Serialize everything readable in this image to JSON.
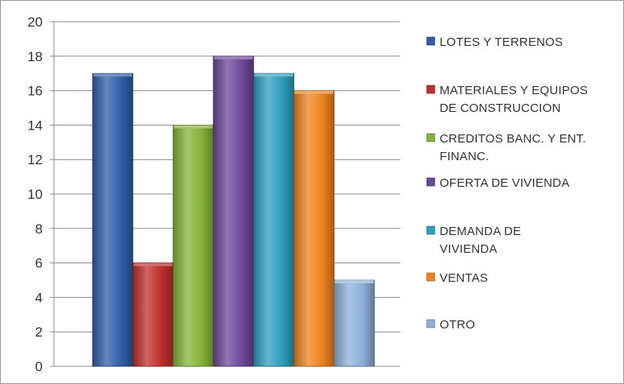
{
  "chart_data": {
    "type": "bar",
    "title": "",
    "xlabel": "",
    "ylabel": "",
    "ylim": [
      0,
      20
    ],
    "yticks": [
      0,
      2,
      4,
      6,
      8,
      10,
      12,
      14,
      16,
      18,
      20
    ],
    "grid": true,
    "legend_position": "right",
    "series": [
      {
        "name": "LOTES Y TERRENOS",
        "label_lines": [
          "LOTES Y TERRENOS"
        ],
        "value": 17,
        "color": "#2f5fa8"
      },
      {
        "name": "MATERIALES Y EQUIPOS DE CONSTRUCCION",
        "label_lines": [
          "MATERIALES Y EQUIPOS",
          "DE CONSTRUCCION"
        ],
        "value": 6,
        "color": "#c0302c"
      },
      {
        "name": "CREDITOS BANC. Y ENT. FINANC.",
        "label_lines": [
          "CREDITOS BANC. Y ENT.",
          "FINANC."
        ],
        "value": 14,
        "color": "#86b43a"
      },
      {
        "name": "OFERTA DE VIVIENDA",
        "label_lines": [
          "OFERTA DE VIVIENDA"
        ],
        "value": 18,
        "color": "#6d4898"
      },
      {
        "name": "DEMANDA DE VIVIENDA",
        "label_lines": [
          "DEMANDA DE",
          "VIVIENDA"
        ],
        "value": 17,
        "color": "#2e9fbf"
      },
      {
        "name": "VENTAS",
        "label_lines": [
          "VENTAS"
        ],
        "value": 16,
        "color": "#ee8420"
      },
      {
        "name": "OTRO",
        "label_lines": [
          "OTRO"
        ],
        "value": 5,
        "color": "#8fb0d9"
      }
    ]
  }
}
